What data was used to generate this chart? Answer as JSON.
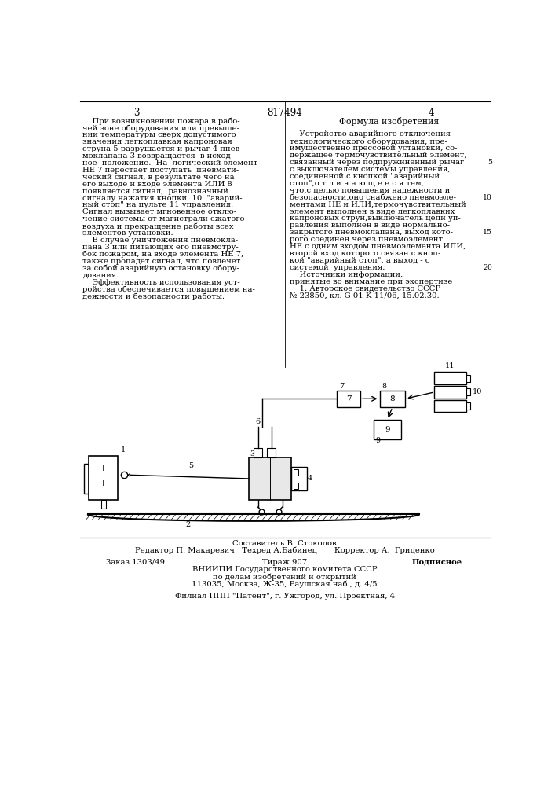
{
  "bg_color": "#ffffff",
  "page_number_left": "3",
  "page_number_center": "817494",
  "page_number_right": "4",
  "left_col_text": [
    "    При возникновении пожара в рабо-",
    "чей зоне оборудования или превыше-",
    "нии температуры сверх допустимого",
    "значения легкоплавкая капроновая",
    "струна 5 разрушается и рычаг 4 пнев-",
    "моклапана 3 возвращается  в исход-",
    "ное  положение.  На  логический элемент",
    "НЕ 7 перестает поступать  пневмати-",
    "ческий сигнал, в результате чего на",
    "его выходе и входе элемента ИЛИ 8",
    "появляется сигнал,  равнозначный",
    "сигналу нажатия кнопки  10  \"аварий-",
    "ный стоп\" на пульте 11 управления.",
    "Сигнал вызывает мгновенное отклю-",
    "чение системы от магистрали сжатого",
    "воздуха и прекращение работы всех",
    "элементов установки.",
    "    В случае уничтожения пневмокла-",
    "пана 3 или питающих его пневмотру-",
    "бок пожаром, на входе элемента НЕ 7,",
    "также пропадет сигнал, что повлечет",
    "за собой аварийную остановку обору-",
    "дования.",
    "    Эффективность использования уст-",
    "ройства обеспечивается повышением на-",
    "дежности и безопасности работы."
  ],
  "right_col_header": "Формула изобретения",
  "right_col_text": [
    "    Устройство аварийного отключения",
    "технологического оборудования, пре-",
    "имущественно прессовой установки, со-",
    "держащее термочувствительный элемент,",
    "связанный через подпружиненный рычаг",
    "с выключателем системы управления,",
    "соединенной с кнопкой \"аварийный",
    "стоп\",о т л и ч а ю щ е е с я тем,",
    "что,с целью повышения надежности и",
    "безопасности,оно снабжено пневмоэле-",
    "ментами НЕ и ИЛИ,термочувствительный",
    "элемент выполнен в виде легкоплавких",
    "капроновых струн,выключатель цепи уп-",
    "равления выполнен в виде нормально-",
    "закрытого пневмоклапана, выход кото-",
    "рого соединен через пневмоэлемент",
    "НЕ с одним входом пневмоэлемента ИЛИ,",
    "второй вход которого связан с кноп-",
    "кой \"аварийный стоп\", а выход - с",
    "системой  управления.",
    "    Источники информации,",
    "принятые во внимание при экспертизе",
    "    1. Авторское свидетельство СССР",
    "№ 23850, кл. G 01 K 11/06, 15.02.30."
  ],
  "line_numbers": [
    5,
    10,
    15,
    20
  ],
  "composer": "Составитель В. Стоколов",
  "editor_line": "Редактор П. Макаревич   Техред А.Бабинец       Корректор А.  Гриценко",
  "order_line1": "Заказ 1303/49",
  "order_line2": "Тираж 907",
  "order_line3": "Подписное",
  "vniip_line1": "ВНИИПИ Государственного комитета СССР",
  "vniip_line2": "по делам изобретений и открытий",
  "vniip_line3": "113035, Москва, Ж-35, Раушская наб., д. 4/5",
  "filial_line": "Филиал ППП \"Патент\", г. Ужгород, ул. Проектная, 4",
  "font_size_main": 7.2,
  "font_size_header": 7.8,
  "font_size_page": 8.5
}
